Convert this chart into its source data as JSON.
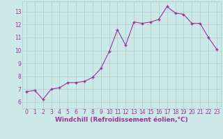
{
  "x": [
    0,
    1,
    2,
    3,
    4,
    5,
    6,
    7,
    8,
    9,
    10,
    11,
    12,
    13,
    14,
    15,
    16,
    17,
    18,
    19,
    20,
    21,
    22,
    23
  ],
  "y": [
    6.8,
    6.9,
    6.2,
    7.0,
    7.1,
    7.5,
    7.5,
    7.6,
    7.9,
    8.6,
    9.9,
    11.6,
    10.4,
    12.2,
    12.1,
    12.2,
    12.4,
    13.4,
    12.9,
    12.8,
    12.1,
    12.1,
    11.0,
    10.1
  ],
  "line_color": "#993399",
  "marker_color": "#993399",
  "bg_color": "#cce8e8",
  "grid_color": "#aacccc",
  "axis_color": "#993399",
  "xlabel": "Windchill (Refroidissement éolien,°C)",
  "xlim": [
    -0.5,
    23.5
  ],
  "ylim": [
    5.5,
    13.8
  ],
  "yticks": [
    6,
    7,
    8,
    9,
    10,
    11,
    12,
    13
  ],
  "xticks": [
    0,
    1,
    2,
    3,
    4,
    5,
    6,
    7,
    8,
    9,
    10,
    11,
    12,
    13,
    14,
    15,
    16,
    17,
    18,
    19,
    20,
    21,
    22,
    23
  ],
  "tick_fontsize": 5.5,
  "xlabel_fontsize": 6.5
}
